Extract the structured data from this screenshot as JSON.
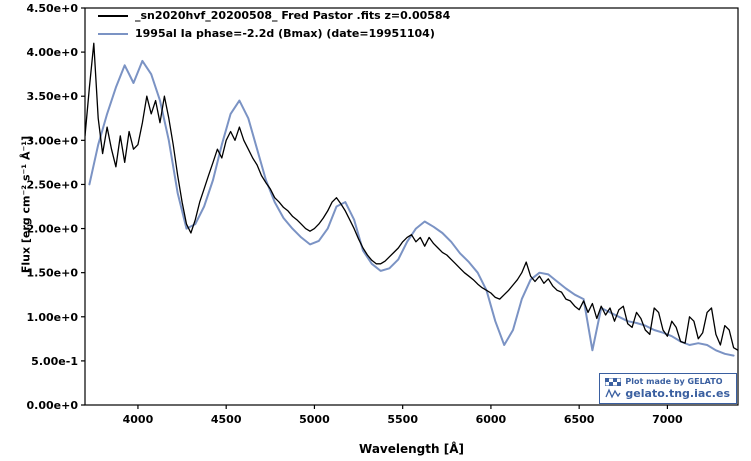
{
  "badge": {
    "line1": "Plot made by GELATO",
    "line2": "gelato.tng.iac.es",
    "color": "#3a5fa0"
  },
  "chart_data": {
    "type": "line",
    "title": "",
    "xlabel": "Wavelength [Å]",
    "ylabel": "Flux [erg cm⁻² s⁻¹ Å⁻¹]",
    "xlim": [
      3700,
      7400
    ],
    "ylim": [
      0,
      4.5
    ],
    "grid": false,
    "legend_position": "upper left",
    "xticks": {
      "values": [
        4000,
        4500,
        5000,
        5500,
        6000,
        6500,
        7000
      ],
      "labels": [
        "4000",
        "4500",
        "5000",
        "5500",
        "6000",
        "6500",
        "7000"
      ]
    },
    "yticks": {
      "values": [
        0,
        0.5,
        1.0,
        1.5,
        2.0,
        2.5,
        3.0,
        3.5,
        4.0,
        4.5
      ],
      "labels": [
        "0.00e+0",
        "5.00e-1",
        "1.00e+0",
        "1.50e+0",
        "2.00e+0",
        "2.50e+0",
        "3.00e+0",
        "3.50e+0",
        "4.00e+0",
        "4.50e+0"
      ]
    },
    "series": [
      {
        "name": "_sn2020hvf_20200508_ Fred Pastor .fits  z=0.00584",
        "color": "#000000",
        "width": 1.3,
        "x_start": 3700,
        "x_step": 25,
        "y": [
          3.05,
          3.6,
          4.1,
          3.25,
          2.85,
          3.15,
          2.9,
          2.7,
          3.05,
          2.75,
          3.1,
          2.9,
          2.95,
          3.2,
          3.5,
          3.3,
          3.45,
          3.2,
          3.5,
          3.25,
          2.95,
          2.6,
          2.3,
          2.05,
          1.95,
          2.1,
          2.3,
          2.45,
          2.6,
          2.75,
          2.9,
          2.8,
          3.0,
          3.1,
          3.0,
          3.15,
          3.0,
          2.9,
          2.8,
          2.72,
          2.6,
          2.52,
          2.45,
          2.35,
          2.3,
          2.24,
          2.2,
          2.14,
          2.1,
          2.05,
          2.0,
          1.97,
          2.0,
          2.05,
          2.12,
          2.2,
          2.3,
          2.35,
          2.28,
          2.2,
          2.1,
          2.0,
          1.88,
          1.78,
          1.7,
          1.64,
          1.6,
          1.6,
          1.63,
          1.68,
          1.73,
          1.78,
          1.85,
          1.9,
          1.93,
          1.85,
          1.9,
          1.8,
          1.9,
          1.83,
          1.78,
          1.73,
          1.7,
          1.65,
          1.6,
          1.55,
          1.5,
          1.46,
          1.42,
          1.37,
          1.33,
          1.3,
          1.27,
          1.22,
          1.2,
          1.25,
          1.3,
          1.36,
          1.42,
          1.5,
          1.62,
          1.46,
          1.4,
          1.46,
          1.38,
          1.43,
          1.35,
          1.3,
          1.28,
          1.2,
          1.18,
          1.12,
          1.08,
          1.18,
          1.05,
          1.15,
          0.98,
          1.12,
          1.02,
          1.1,
          0.95,
          1.08,
          1.12,
          0.92,
          0.88,
          1.05,
          0.98,
          0.85,
          0.8,
          1.1,
          1.05,
          0.85,
          0.78,
          0.95,
          0.88,
          0.72,
          0.7,
          1.0,
          0.95,
          0.75,
          0.82,
          1.05,
          1.1,
          0.8,
          0.68,
          0.9,
          0.85,
          0.65,
          0.62
        ]
      },
      {
        "name": "1995al  Ia  phase=-2.2d (Bmax)  (date=19951104)",
        "color": "#7b93c4",
        "width": 2.0,
        "x_start": 3725,
        "x_step": 50,
        "y": [
          2.5,
          2.95,
          3.3,
          3.6,
          3.85,
          3.65,
          3.9,
          3.75,
          3.45,
          3.0,
          2.4,
          2.0,
          2.05,
          2.25,
          2.55,
          2.95,
          3.3,
          3.45,
          3.25,
          2.9,
          2.55,
          2.3,
          2.12,
          2.0,
          1.9,
          1.82,
          1.86,
          2.0,
          2.25,
          2.3,
          2.1,
          1.75,
          1.6,
          1.52,
          1.55,
          1.65,
          1.85,
          2.0,
          2.08,
          2.02,
          1.95,
          1.85,
          1.72,
          1.62,
          1.5,
          1.3,
          0.95,
          0.68,
          0.85,
          1.2,
          1.42,
          1.5,
          1.48,
          1.4,
          1.32,
          1.25,
          1.2,
          0.62,
          1.1,
          1.05,
          1.0,
          0.95,
          0.93,
          0.9,
          0.85,
          0.82,
          0.78,
          0.72,
          0.68,
          0.7,
          0.68,
          0.62,
          0.58,
          0.56
        ]
      }
    ]
  }
}
